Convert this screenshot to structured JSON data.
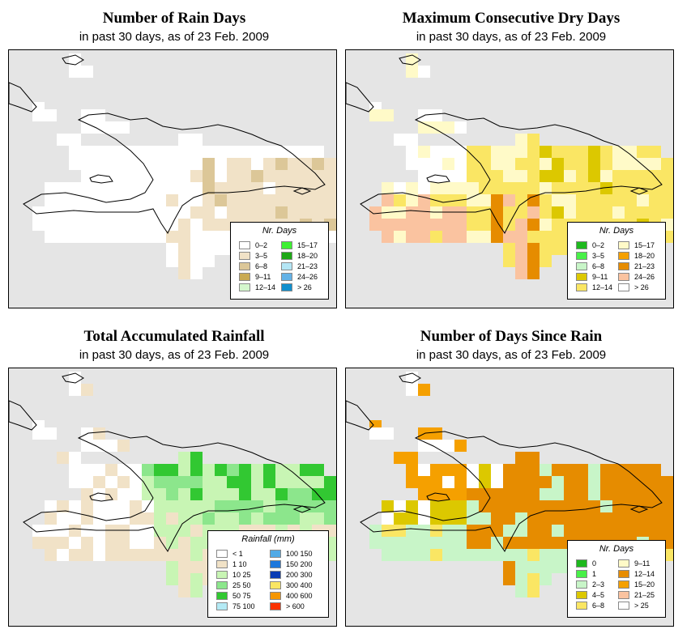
{
  "panels": {
    "rain_days": {
      "title": "Number of Rain Days",
      "subtitle": "in past 30 days, as of  23 Feb. 2009",
      "legend_title": "Nr. Days",
      "legend_items": [
        {
          "label": "0–2",
          "color": "#ffffff"
        },
        {
          "label": "3–5",
          "color": "#f1e2c7"
        },
        {
          "label": "6–8",
          "color": "#dcc798"
        },
        {
          "label": "9–11",
          "color": "#c9aa52"
        },
        {
          "label": "12–14",
          "color": "#d4f7cd"
        },
        {
          "label": "15–17",
          "color": "#3ff033"
        },
        {
          "label": "18–20",
          "color": "#1ea817"
        },
        {
          "label": "21–23",
          "color": "#b4e6f5"
        },
        {
          "label": "24–26",
          "color": "#64b2e6"
        },
        {
          "label": "> 26",
          "color": "#118fcd"
        }
      ]
    },
    "dry_days": {
      "title": "Maximum Consecutive Dry Days",
      "subtitle": "in past 30 days, as of  23 Feb. 2009",
      "legend_title": "Nr. Days",
      "legend_items": [
        {
          "label": "0–2",
          "color": "#1eb91e"
        },
        {
          "label": "3–5",
          "color": "#48f048"
        },
        {
          "label": "6–8",
          "color": "#c8f5c8"
        },
        {
          "label": "9–11",
          "color": "#dcc800"
        },
        {
          "label": "12–14",
          "color": "#fae664"
        },
        {
          "label": "15–17",
          "color": "#fffac8"
        },
        {
          "label": "18–20",
          "color": "#f5a000"
        },
        {
          "label": "21–23",
          "color": "#e68c00"
        },
        {
          "label": "24–26",
          "color": "#fac3a0"
        },
        {
          "label": "> 26",
          "color": "#ffffff"
        }
      ]
    },
    "rainfall": {
      "title": "Total Accumulated Rainfall",
      "subtitle": "in past 30 days, as of  23 Feb. 2009",
      "legend_title": "Rainfall (mm)",
      "legend_items": [
        {
          "label": "< 1",
          "color": "#ffffff"
        },
        {
          "label": "1    10",
          "color": "#f1e2c7"
        },
        {
          "label": "10    25",
          "color": "#c8f5b4"
        },
        {
          "label": "25    50",
          "color": "#8ce68c"
        },
        {
          "label": "50    75",
          "color": "#32c832"
        },
        {
          "label": "75   100",
          "color": "#b4eaf5"
        },
        {
          "label": "100   150",
          "color": "#50aae6"
        },
        {
          "label": "150   200",
          "color": "#1e78dc"
        },
        {
          "label": "200   300",
          "color": "#0a3cb4"
        },
        {
          "label": "300   400",
          "color": "#fae664"
        },
        {
          "label": "400   600",
          "color": "#f59600"
        },
        {
          "label": "> 600",
          "color": "#fa3200"
        }
      ]
    },
    "days_since": {
      "title": "Number of Days Since Rain",
      "subtitle": "in past 30 days, as of  23 Feb. 2009",
      "legend_title": "Nr. Days",
      "legend_items": [
        {
          "label": "0",
          "color": "#1eb91e"
        },
        {
          "label": "1",
          "color": "#48f048"
        },
        {
          "label": "2–3",
          "color": "#c8f5c8"
        },
        {
          "label": "4–5",
          "color": "#dcc800"
        },
        {
          "label": "6–8",
          "color": "#fae664"
        },
        {
          "label": "9–11",
          "color": "#fffac8"
        },
        {
          "label": "12–14",
          "color": "#e68c00"
        },
        {
          "label": "15–20",
          "color": "#f5a000"
        },
        {
          "label": "21–25",
          "color": "#fac3a0"
        },
        {
          "label": "> 25",
          "color": "#ffffff"
        }
      ]
    }
  }
}
